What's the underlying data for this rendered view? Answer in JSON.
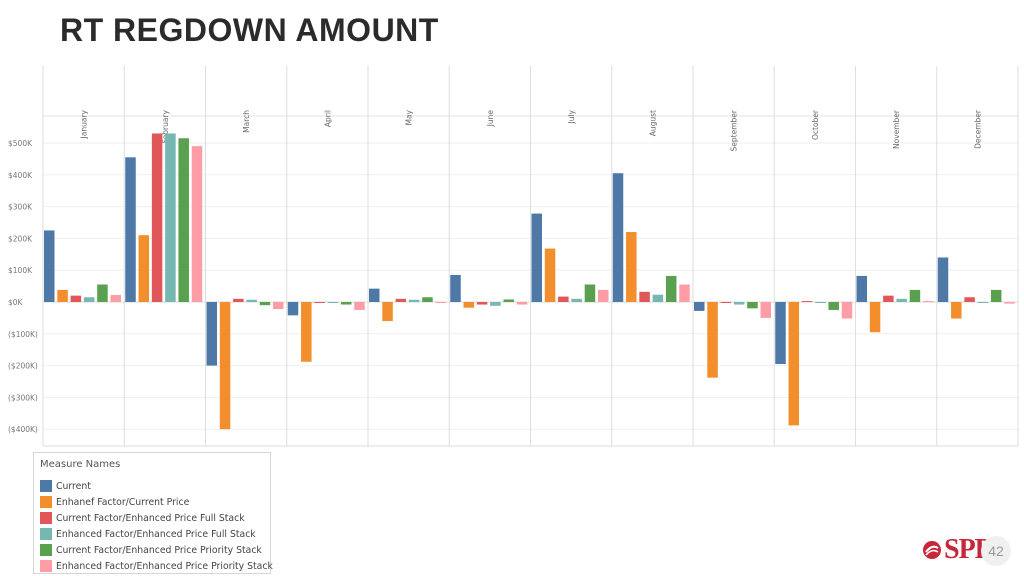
{
  "slide": {
    "title": "RT REGDOWN AMOUNT",
    "page_number": "42",
    "logo_text": "SPP"
  },
  "legend": {
    "title": "Measure Names"
  },
  "chart_data": {
    "type": "bar",
    "categories": [
      "January",
      "February",
      "March",
      "April",
      "May",
      "June",
      "July",
      "August",
      "September",
      "October",
      "November",
      "December"
    ],
    "y_ticks": [
      "$500K",
      "$400K",
      "$300K",
      "$200K",
      "$100K",
      "$0K",
      "($100K)",
      "($200K)",
      "($300K)",
      "($400K)"
    ],
    "y_tick_values": [
      500000,
      400000,
      300000,
      200000,
      100000,
      0,
      -100000,
      -200000,
      -300000,
      -400000
    ],
    "ylim": [
      -450000,
      580000
    ],
    "grid": true,
    "legend_position": "bottom-left",
    "series": [
      {
        "name": "Current",
        "color": "#4e79a7",
        "values": [
          225000,
          455000,
          -200000,
          -42000,
          42000,
          85000,
          278000,
          405000,
          -28000,
          -195000,
          82000,
          140000
        ]
      },
      {
        "name": "Enhanef Factor/Current Price",
        "color": "#f28e2b",
        "values": [
          38000,
          210000,
          -400000,
          -188000,
          -60000,
          -18000,
          168000,
          220000,
          -238000,
          -388000,
          -95000,
          -52000
        ]
      },
      {
        "name": "Current Factor/Enhanced Price Full Stack",
        "color": "#e15759",
        "values": [
          20000,
          530000,
          10000,
          -3000,
          10000,
          -8000,
          17000,
          32000,
          -3000,
          3000,
          20000,
          15000
        ]
      },
      {
        "name": "Enhanced Factor/Enhanced Price Full Stack",
        "color": "#76b7b2",
        "values": [
          15000,
          530000,
          7000,
          -3000,
          7000,
          -12000,
          10000,
          23000,
          -8000,
          -3000,
          10000,
          -3000
        ]
      },
      {
        "name": "Current Factor/Enhanced Price Priority Stack",
        "color": "#59a14f",
        "values": [
          55000,
          515000,
          -10000,
          -8000,
          15000,
          8000,
          55000,
          82000,
          -20000,
          -25000,
          38000,
          38000
        ]
      },
      {
        "name": "Enhanced Factor/Enhanced Price Priority Stack",
        "color": "#ff9da7",
        "values": [
          22000,
          490000,
          -22000,
          -25000,
          -3000,
          -8000,
          38000,
          55000,
          -50000,
          -52000,
          3000,
          -5000
        ]
      }
    ]
  }
}
